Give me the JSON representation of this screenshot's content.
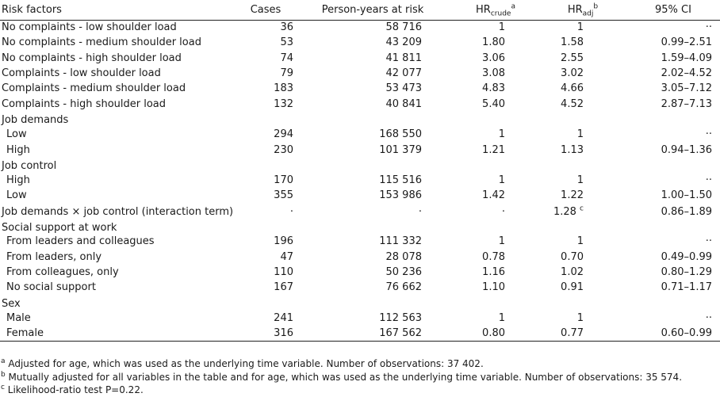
{
  "headers": {
    "risk_factors": "Risk factors",
    "cases": "Cases",
    "person_years": "Person-years at risk",
    "hr_crude_main": "HR",
    "hr_crude_sub": "crude",
    "hr_crude_sup": "a",
    "hr_adj_main": "HR",
    "hr_adj_sub": "adj",
    "hr_adj_sup": "b",
    "ci": "95% CI"
  },
  "rows": [
    {
      "label": "No complaints - low shoulder load",
      "cases": "36",
      "py": "58 716",
      "hrc": "1",
      "hra": "1",
      "ci": "··"
    },
    {
      "label": "No complaints - medium shoulder load",
      "cases": "53",
      "py": "43 209",
      "hrc": "1.80",
      "hra": "1.58",
      "ci": "0.99–2.51"
    },
    {
      "label": "No complaints - high shoulder load",
      "cases": "74",
      "py": "41 811",
      "hrc": "3.06",
      "hra": "2.55",
      "ci": "1.59–4.09"
    },
    {
      "label": "Complaints - low shoulder load",
      "cases": "79",
      "py": "42 077",
      "hrc": "3.08",
      "hra": "3.02",
      "ci": "2.02–4.52"
    },
    {
      "label": "Complaints - medium shoulder load",
      "cases": "183",
      "py": "53 473",
      "hrc": "4.83",
      "hra": "4.66",
      "ci": "3.05–7.12"
    },
    {
      "label": "Complaints - high shoulder load",
      "cases": "132",
      "py": "40 841",
      "hrc": "5.40",
      "hra": "4.52",
      "ci": "2.87–7.13"
    },
    {
      "label": "Job demands"
    },
    {
      "label": "Low",
      "cases": "294",
      "py": "168 550",
      "hrc": "1",
      "hra": "1",
      "ci": "··"
    },
    {
      "label": "High",
      "cases": "230",
      "py": "101 379",
      "hrc": "1.21",
      "hra": "1.13",
      "ci": "0.94–1.36"
    },
    {
      "label": "Job control"
    },
    {
      "label": "High",
      "cases": "170",
      "py": "115 516",
      "hrc": "1",
      "hra": "1",
      "ci": "··"
    },
    {
      "label": "Low",
      "cases": "355",
      "py": "153 986",
      "hrc": "1.42",
      "hra": "1.22",
      "ci": "1.00–1.50"
    },
    {
      "label": "Job demands × job control (interaction term)",
      "cases": "·",
      "py": "·",
      "hrc": "·",
      "hra": "1.28",
      "hra_sup": "c",
      "ci": "0.86–1.89"
    },
    {
      "label": "Social support at work"
    },
    {
      "label": "From leaders and colleagues",
      "cases": "196",
      "py": "111 332",
      "hrc": "1",
      "hra": "1",
      "ci": "··"
    },
    {
      "label": "From leaders, only",
      "cases": "47",
      "py": "28 078",
      "hrc": "0.78",
      "hra": "0.70",
      "ci": "0.49–0.99"
    },
    {
      "label": "From colleagues, only",
      "cases": "110",
      "py": "50 236",
      "hrc": "1.16",
      "hra": "1.02",
      "ci": "0.80–1.29"
    },
    {
      "label": "No social support",
      "cases": "167",
      "py": "76 662",
      "hrc": "1.10",
      "hra": "0.91",
      "ci": "0.71–1.17"
    },
    {
      "label": "Sex"
    },
    {
      "label": "Male",
      "cases": "241",
      "py": "112 563",
      "hrc": "1",
      "hra": "1",
      "ci": "··"
    },
    {
      "label": "Female",
      "cases": "316",
      "py": "167 562",
      "hrc": "0.80",
      "hra": "0.77",
      "ci": "0.60–0.99"
    }
  ],
  "footnotes": [
    {
      "mark": "a",
      "text": " Adjusted for age, which was used as the underlying time variable. Number of observations: 37 402."
    },
    {
      "mark": "b",
      "text": " Mutually adjusted for all variables in the table and for age, which was used as the underlying time variable. Number of observations: 35 574."
    },
    {
      "mark": "c",
      "text": " Likelihood-ratio test P=0.22."
    }
  ]
}
